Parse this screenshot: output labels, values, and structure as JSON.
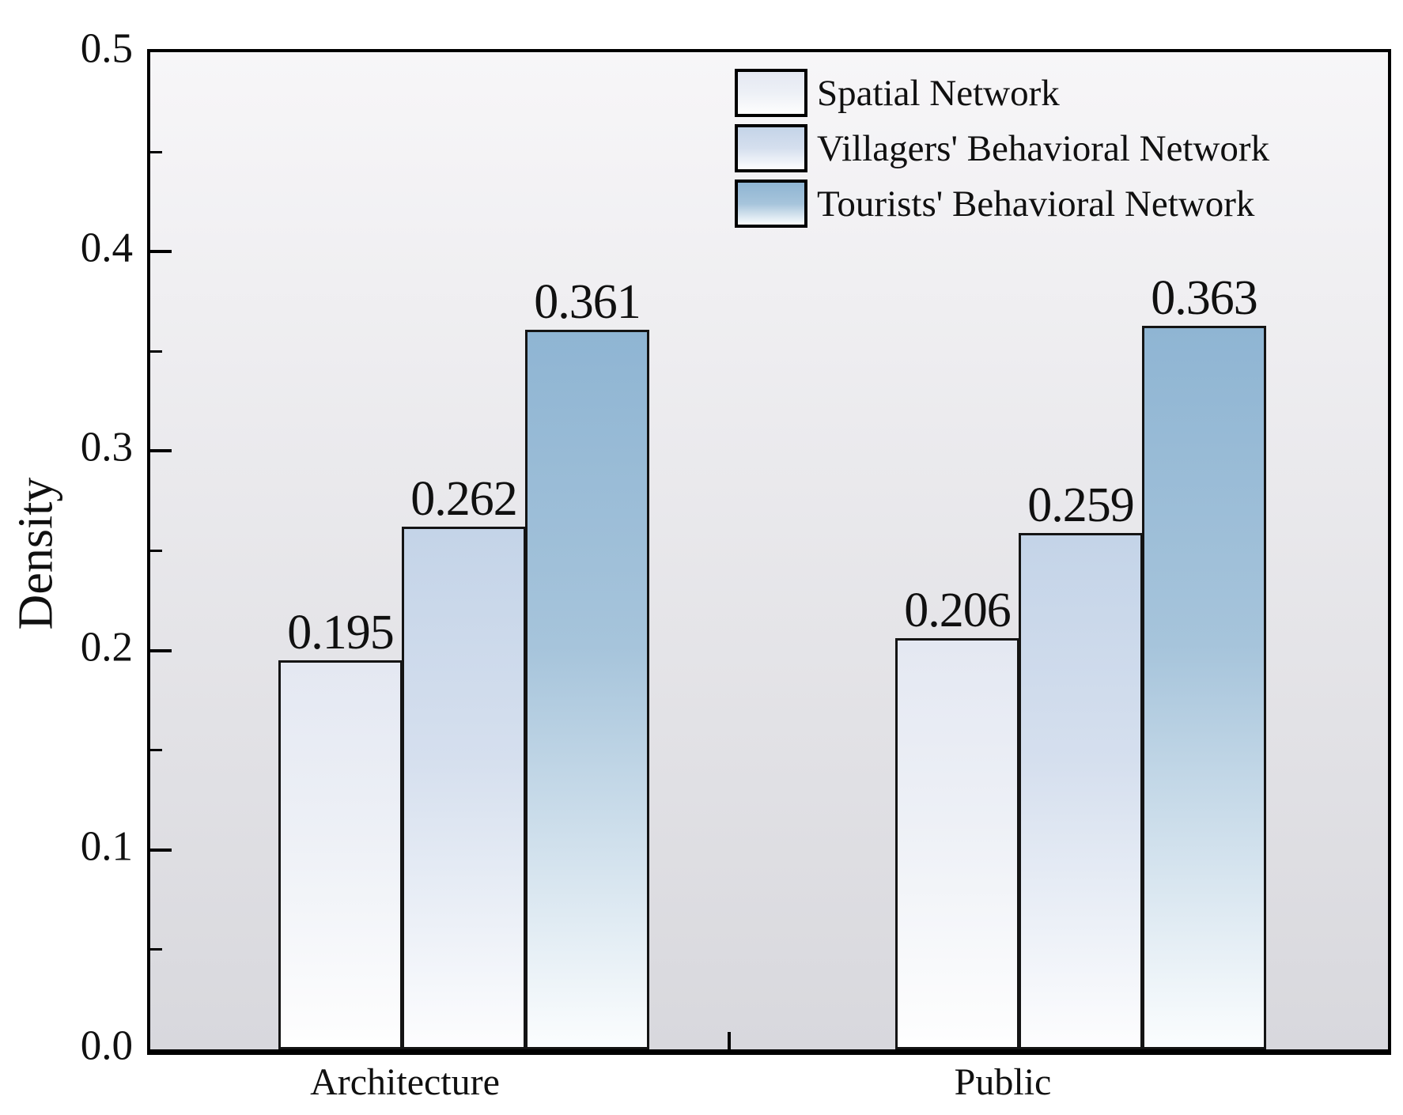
{
  "chart_data": {
    "type": "bar",
    "title": "",
    "ylabel": "Density",
    "xlabel": "",
    "categories": [
      "Architecture",
      "Public"
    ],
    "series": [
      {
        "name": "Spatial Network",
        "values": [
          0.195,
          0.206
        ],
        "color_top": "#e4e8f2",
        "color_mid": "#edf0f6",
        "color_bottom": "#fefefe"
      },
      {
        "name": "Villagers' Behavioral Network",
        "values": [
          0.262,
          0.259
        ],
        "color_top": "#c4d4e8",
        "color_mid": "#d5dfee",
        "color_bottom": "#fdfdfe"
      },
      {
        "name": "Tourists' Behavioral Network",
        "values": [
          0.361,
          0.363
        ],
        "color_top": "#8fb5d3",
        "color_mid": "#a6c4db",
        "color_bottom": "#fbfdfe"
      }
    ],
    "value_labels": [
      [
        "0.195",
        "0.262",
        "0.361"
      ],
      [
        "0.206",
        "0.259",
        "0.363"
      ]
    ],
    "ylim": [
      0,
      0.5
    ],
    "ytick_labels": [
      "0.0",
      "0.1",
      "0.2",
      "0.3",
      "0.4",
      "0.5"
    ],
    "minor_tick_values": [
      0.05,
      0.15,
      0.25,
      0.35,
      0.45
    ],
    "grid": false,
    "legend_position": "top-inside",
    "plot_bg_top": "#f7f6f8",
    "plot_bg_bottom": "#d8d8dd",
    "axis_color": "#000000",
    "text_color": "#101010"
  }
}
